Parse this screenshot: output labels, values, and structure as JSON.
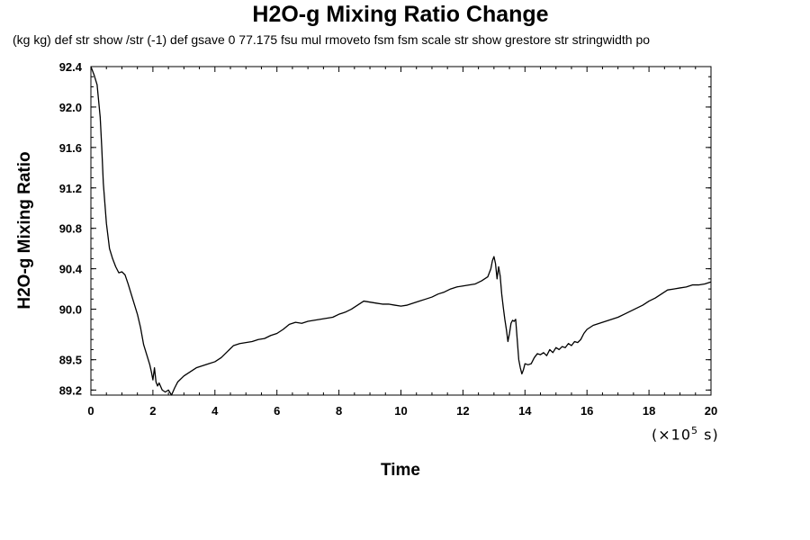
{
  "chart_data": {
    "type": "line",
    "title": "H2O-g Mixing Ratio Change",
    "subtitle": "(kg kg) def str show /str (-1) def gsave 0 77.175 fsu mul rmoveto fsm fsm scale str show grestore str stringwidth po",
    "xlabel": "Time",
    "ylabel": "H2O-g Mixing Ratio",
    "x_scale_label_prefix": "(×10",
    "x_scale_label_exp": "5",
    "x_scale_label_suffix": " s)",
    "xlim": [
      0,
      20
    ],
    "ylim": [
      89.15,
      92.4
    ],
    "xticks": [
      0,
      2,
      4,
      6,
      8,
      10,
      12,
      14,
      16,
      18,
      20
    ],
    "xtick_labels": [
      "0",
      "2",
      "4",
      "6",
      "8",
      "10",
      "12",
      "14",
      "16",
      "18",
      "20"
    ],
    "yticks": [
      89.2,
      89.5,
      90.0,
      90.4,
      90.8,
      91.2,
      91.6,
      92.0,
      92.4
    ],
    "ytick_labels": [
      "89.2",
      "89.5",
      "90.0",
      "90.4",
      "90.8",
      "91.2",
      "91.6",
      "92.0",
      "92.4"
    ],
    "grid": false,
    "series": [
      {
        "x": [
          0,
          0.1,
          0.2,
          0.3,
          0.35,
          0.4,
          0.5,
          0.6,
          0.7,
          0.8,
          0.9,
          1.0,
          1.1,
          1.2,
          1.3,
          1.4,
          1.5,
          1.6,
          1.7,
          1.8,
          1.9,
          1.95,
          2.0,
          2.05,
          2.1,
          2.15,
          2.2,
          2.3,
          2.4,
          2.5,
          2.6,
          2.7,
          2.8,
          3.0,
          3.2,
          3.4,
          3.6,
          3.8,
          4.0,
          4.2,
          4.4,
          4.6,
          4.8,
          5.0,
          5.2,
          5.4,
          5.6,
          5.8,
          6.0,
          6.2,
          6.4,
          6.6,
          6.8,
          7.0,
          7.2,
          7.4,
          7.6,
          7.8,
          8.0,
          8.2,
          8.4,
          8.6,
          8.8,
          9.0,
          9.2,
          9.4,
          9.6,
          9.8,
          10.0,
          10.2,
          10.4,
          10.6,
          10.8,
          11.0,
          11.2,
          11.4,
          11.6,
          11.8,
          12.0,
          12.2,
          12.4,
          12.6,
          12.8,
          12.9,
          12.95,
          13.0,
          13.05,
          13.1,
          13.15,
          13.2,
          13.25,
          13.3,
          13.35,
          13.4,
          13.45,
          13.5,
          13.55,
          13.6,
          13.65,
          13.7,
          13.75,
          13.8,
          13.85,
          13.9,
          13.95,
          14.0,
          14.1,
          14.2,
          14.3,
          14.4,
          14.5,
          14.6,
          14.7,
          14.8,
          14.9,
          15.0,
          15.1,
          15.2,
          15.3,
          15.4,
          15.5,
          15.6,
          15.7,
          15.8,
          15.9,
          16.0,
          16.2,
          16.4,
          16.6,
          16.8,
          17.0,
          17.2,
          17.4,
          17.6,
          17.8,
          18.0,
          18.2,
          18.4,
          18.6,
          18.8,
          19.0,
          19.2,
          19.4,
          19.6,
          19.8,
          20.0
        ],
        "y": [
          92.4,
          92.32,
          92.22,
          91.9,
          91.6,
          91.25,
          90.85,
          90.6,
          90.5,
          90.42,
          90.36,
          90.37,
          90.34,
          90.25,
          90.15,
          90.05,
          89.95,
          89.82,
          89.65,
          89.55,
          89.45,
          89.38,
          89.3,
          89.42,
          89.28,
          89.24,
          89.27,
          89.2,
          89.18,
          89.2,
          89.15,
          89.22,
          89.28,
          89.34,
          89.38,
          89.42,
          89.44,
          89.46,
          89.48,
          89.52,
          89.58,
          89.64,
          89.66,
          89.67,
          89.68,
          89.7,
          89.71,
          89.74,
          89.76,
          89.8,
          89.85,
          89.87,
          89.86,
          89.88,
          89.89,
          89.9,
          89.91,
          89.92,
          89.95,
          89.97,
          90.0,
          90.04,
          90.08,
          90.07,
          90.06,
          90.05,
          90.05,
          90.04,
          90.03,
          90.04,
          90.06,
          90.08,
          90.1,
          90.12,
          90.15,
          90.17,
          90.2,
          90.22,
          90.23,
          90.24,
          90.25,
          90.28,
          90.32,
          90.4,
          90.48,
          90.52,
          90.45,
          90.3,
          90.42,
          90.33,
          90.15,
          90.02,
          89.9,
          89.8,
          89.68,
          89.76,
          89.86,
          89.89,
          89.88,
          89.9,
          89.7,
          89.5,
          89.42,
          89.36,
          89.4,
          89.46,
          89.45,
          89.46,
          89.52,
          89.56,
          89.55,
          89.57,
          89.54,
          89.6,
          89.57,
          89.62,
          89.6,
          89.63,
          89.62,
          89.66,
          89.64,
          89.68,
          89.67,
          89.7,
          89.76,
          89.8,
          89.84,
          89.86,
          89.88,
          89.9,
          89.92,
          89.95,
          89.98,
          90.01,
          90.04,
          90.08,
          90.11,
          90.15,
          90.19,
          90.2,
          90.21,
          90.22,
          90.24,
          90.24,
          90.25,
          90.27
        ]
      }
    ]
  }
}
